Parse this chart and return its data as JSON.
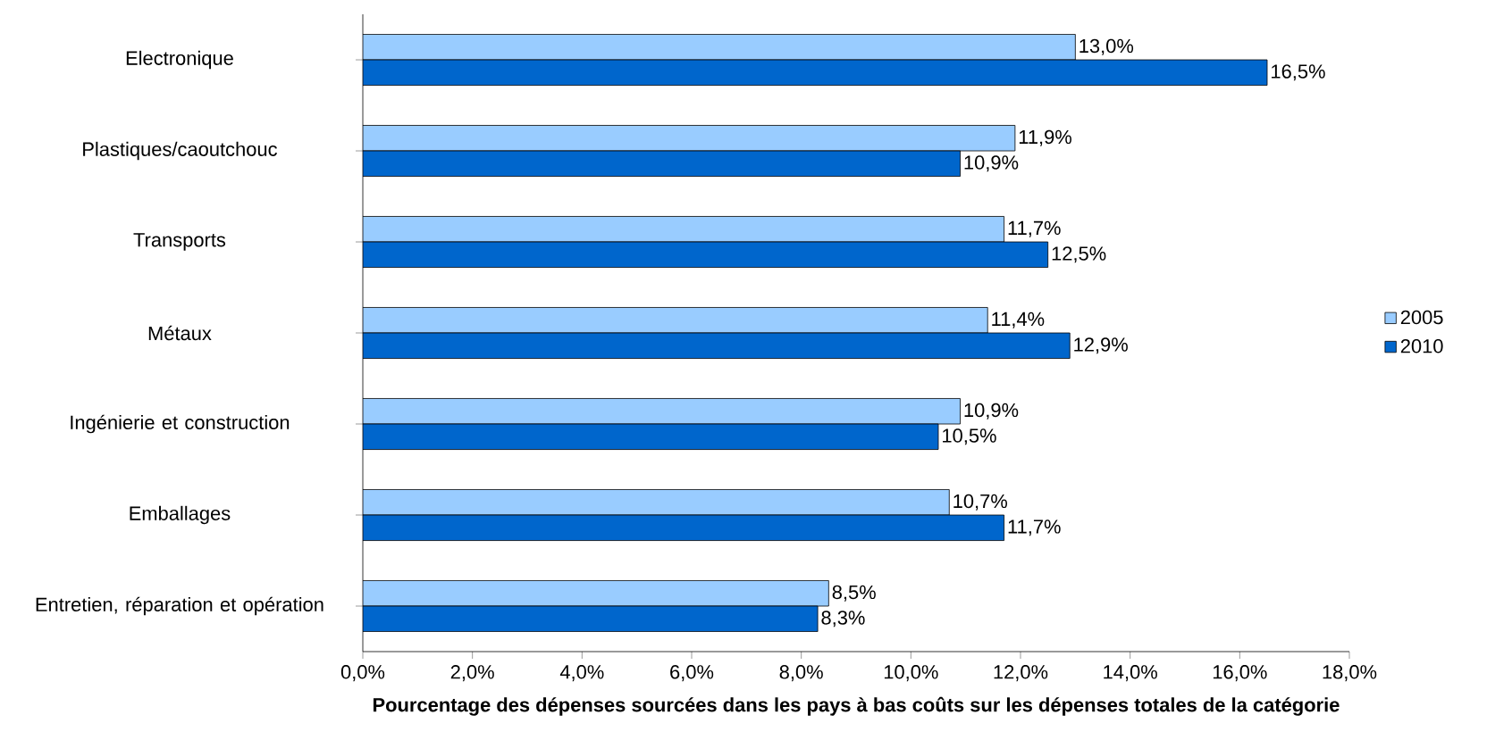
{
  "chart_data": {
    "type": "bar",
    "orientation": "horizontal",
    "xlabel": "Pourcentage des dépenses sourcées dans les pays à bas coûts sur les dépenses totales de la catégorie",
    "categories": [
      "Electronique",
      "Plastiques/caoutchouc",
      "Transports",
      "Métaux",
      "Ingénierie et construction",
      "Emballages",
      "Entretien, réparation et opération"
    ],
    "series": [
      {
        "name": "2005",
        "color": "#99ccff",
        "values": [
          13.0,
          11.9,
          11.7,
          11.4,
          10.9,
          10.7,
          8.5
        ],
        "value_labels": [
          "13,0%",
          "11,9%",
          "11,7%",
          "11,4%",
          "10,9%",
          "10,7%",
          "8,5%"
        ]
      },
      {
        "name": "2010",
        "color": "#0066cc",
        "values": [
          16.5,
          10.9,
          12.5,
          12.9,
          10.5,
          11.7,
          8.3
        ],
        "value_labels": [
          "16,5%",
          "10,9%",
          "12,5%",
          "12,9%",
          "10,5%",
          "11,7%",
          "8,3%"
        ]
      }
    ],
    "xlim": [
      0,
      18
    ],
    "xticks": [
      {
        "value": 0,
        "label": "0,0%"
      },
      {
        "value": 2,
        "label": "2,0%"
      },
      {
        "value": 4,
        "label": "4,0%"
      },
      {
        "value": 6,
        "label": "6,0%"
      },
      {
        "value": 8,
        "label": "8,0%"
      },
      {
        "value": 10,
        "label": "10,0%"
      },
      {
        "value": 12,
        "label": "12,0%"
      },
      {
        "value": 14,
        "label": "14,0%"
      },
      {
        "value": 16,
        "label": "16,0%"
      },
      {
        "value": 18,
        "label": "18,0%"
      }
    ],
    "legend": "right",
    "grid": false
  }
}
